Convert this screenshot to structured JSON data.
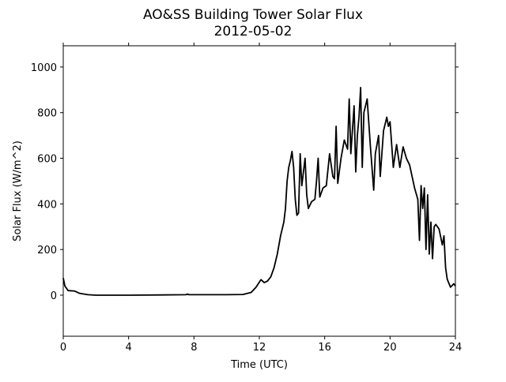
{
  "chart_data": {
    "type": "line",
    "title": "AO&SS Building Tower Solar Flux",
    "subtitle": "2012-05-02",
    "x_label": "Time (UTC)",
    "y_label": "Solar Flux (W/m^2)",
    "xlim": [
      0,
      24
    ],
    "xticks": [
      0,
      4,
      8,
      12,
      16,
      20,
      24
    ],
    "ylim": [
      -180,
      1093
    ],
    "yticks": [
      0,
      200,
      400,
      600,
      800,
      1000
    ],
    "x": [
      0,
      0.1,
      0.3,
      0.7,
      1.0,
      1.5,
      2,
      4,
      6,
      7.5,
      7.6,
      7.7,
      10,
      11,
      11.5,
      11.8,
      12.1,
      12.3,
      12.5,
      12.7,
      12.9,
      13.1,
      13.3,
      13.5,
      13.6,
      13.7,
      13.8,
      13.9,
      14.0,
      14.1,
      14.2,
      14.3,
      14.4,
      14.5,
      14.6,
      14.7,
      14.8,
      14.9,
      15.0,
      15.2,
      15.4,
      15.5,
      15.6,
      15.7,
      15.9,
      16.1,
      16.3,
      16.5,
      16.6,
      16.7,
      16.8,
      17.0,
      17.2,
      17.4,
      17.5,
      17.6,
      17.8,
      17.9,
      18.0,
      18.1,
      18.2,
      18.3,
      18.4,
      18.6,
      18.8,
      19.0,
      19.1,
      19.3,
      19.4,
      19.6,
      19.8,
      19.9,
      20.0,
      20.2,
      20.4,
      20.6,
      20.8,
      21.0,
      21.2,
      21.5,
      21.7,
      21.8,
      21.9,
      22.0,
      22.1,
      22.2,
      22.3,
      22.4,
      22.5,
      22.6,
      22.7,
      22.8,
      23.0,
      23.2,
      23.3,
      23.4,
      23.5,
      23.7,
      23.9,
      24.0
    ],
    "series": [
      {
        "color": "#000000",
        "values": [
          75,
          40,
          20,
          18,
          8,
          2,
          0,
          0,
          1,
          2,
          5,
          2,
          2,
          3,
          12,
          35,
          68,
          55,
          62,
          80,
          120,
          180,
          260,
          320,
          380,
          500,
          560,
          590,
          630,
          560,
          420,
          350,
          360,
          620,
          480,
          540,
          600,
          440,
          380,
          410,
          420,
          500,
          600,
          430,
          470,
          480,
          620,
          520,
          510,
          740,
          490,
          600,
          680,
          640,
          860,
          620,
          830,
          540,
          700,
          780,
          910,
          560,
          800,
          860,
          650,
          460,
          620,
          700,
          520,
          720,
          780,
          740,
          760,
          560,
          660,
          560,
          650,
          600,
          570,
          470,
          420,
          240,
          480,
          380,
          470,
          200,
          440,
          180,
          320,
          160,
          300,
          310,
          290,
          220,
          260,
          120,
          70,
          35,
          50,
          40
        ]
      }
    ]
  }
}
